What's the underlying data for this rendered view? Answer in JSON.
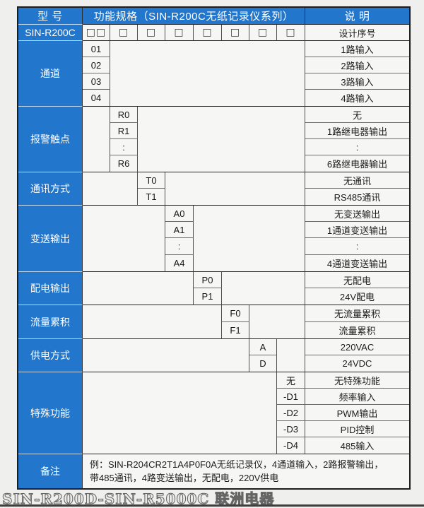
{
  "colors": {
    "accent_blue": "#2276cc"
  },
  "header": {
    "model_col": "型 号",
    "spec_col": "功能规格（SIN-R200C无纸记录仪系列）",
    "desc_col": "说 明"
  },
  "design": {
    "model": "SIN-R200C",
    "boxes": [
      "□□",
      "□",
      "□",
      "□",
      "□",
      "□",
      "□",
      "□"
    ],
    "desc": "设计序号"
  },
  "sections": [
    {
      "label": "通道",
      "codes": [
        "01",
        "02",
        "03",
        "04"
      ],
      "descs": [
        "1路输入",
        "2路输入",
        "3路输入",
        "4路输入"
      ]
    },
    {
      "label": "报警触点",
      "codes": [
        "R0",
        "R1",
        ":",
        "R6"
      ],
      "descs": [
        "无",
        "1路继电器输出",
        ":",
        "6路继电器输出"
      ]
    },
    {
      "label": "通讯方式",
      "codes": [
        "T0",
        "T1"
      ],
      "descs": [
        "无通讯",
        "RS485通讯"
      ]
    },
    {
      "label": "变送输出",
      "codes": [
        "A0",
        "A1",
        ":",
        "A4"
      ],
      "descs": [
        "无变送输出",
        "1通道变送输出",
        ":",
        "4通道变送输出"
      ]
    },
    {
      "label": "配电输出",
      "codes": [
        "P0",
        "P1"
      ],
      "descs": [
        "无配电",
        "24V配电"
      ]
    },
    {
      "label": "流量累积",
      "codes": [
        "F0",
        "F1"
      ],
      "descs": [
        "无流量累积",
        "流量累积"
      ]
    },
    {
      "label": "供电方式",
      "codes": [
        "A",
        "D"
      ],
      "descs": [
        "220VAC",
        "24VDC"
      ]
    },
    {
      "label": "特殊功能",
      "codes": [
        "无",
        "-D1",
        "-D2",
        "-D3",
        "-D4"
      ],
      "descs": [
        "无特殊功能",
        "频率输入",
        "PWM输出",
        "PID控制",
        "485输入"
      ]
    }
  ],
  "remark": {
    "label": "备注",
    "line1": "例：SIN-R204CR2T1A4P0F0A无纸记录仪，4通道输入，2路报警输出，",
    "line2": "带485通讯，4路变送输出，无配电，220V供电"
  },
  "footer": {
    "text": "SIN-R200D-SIN-R5000C 联洲电器"
  }
}
